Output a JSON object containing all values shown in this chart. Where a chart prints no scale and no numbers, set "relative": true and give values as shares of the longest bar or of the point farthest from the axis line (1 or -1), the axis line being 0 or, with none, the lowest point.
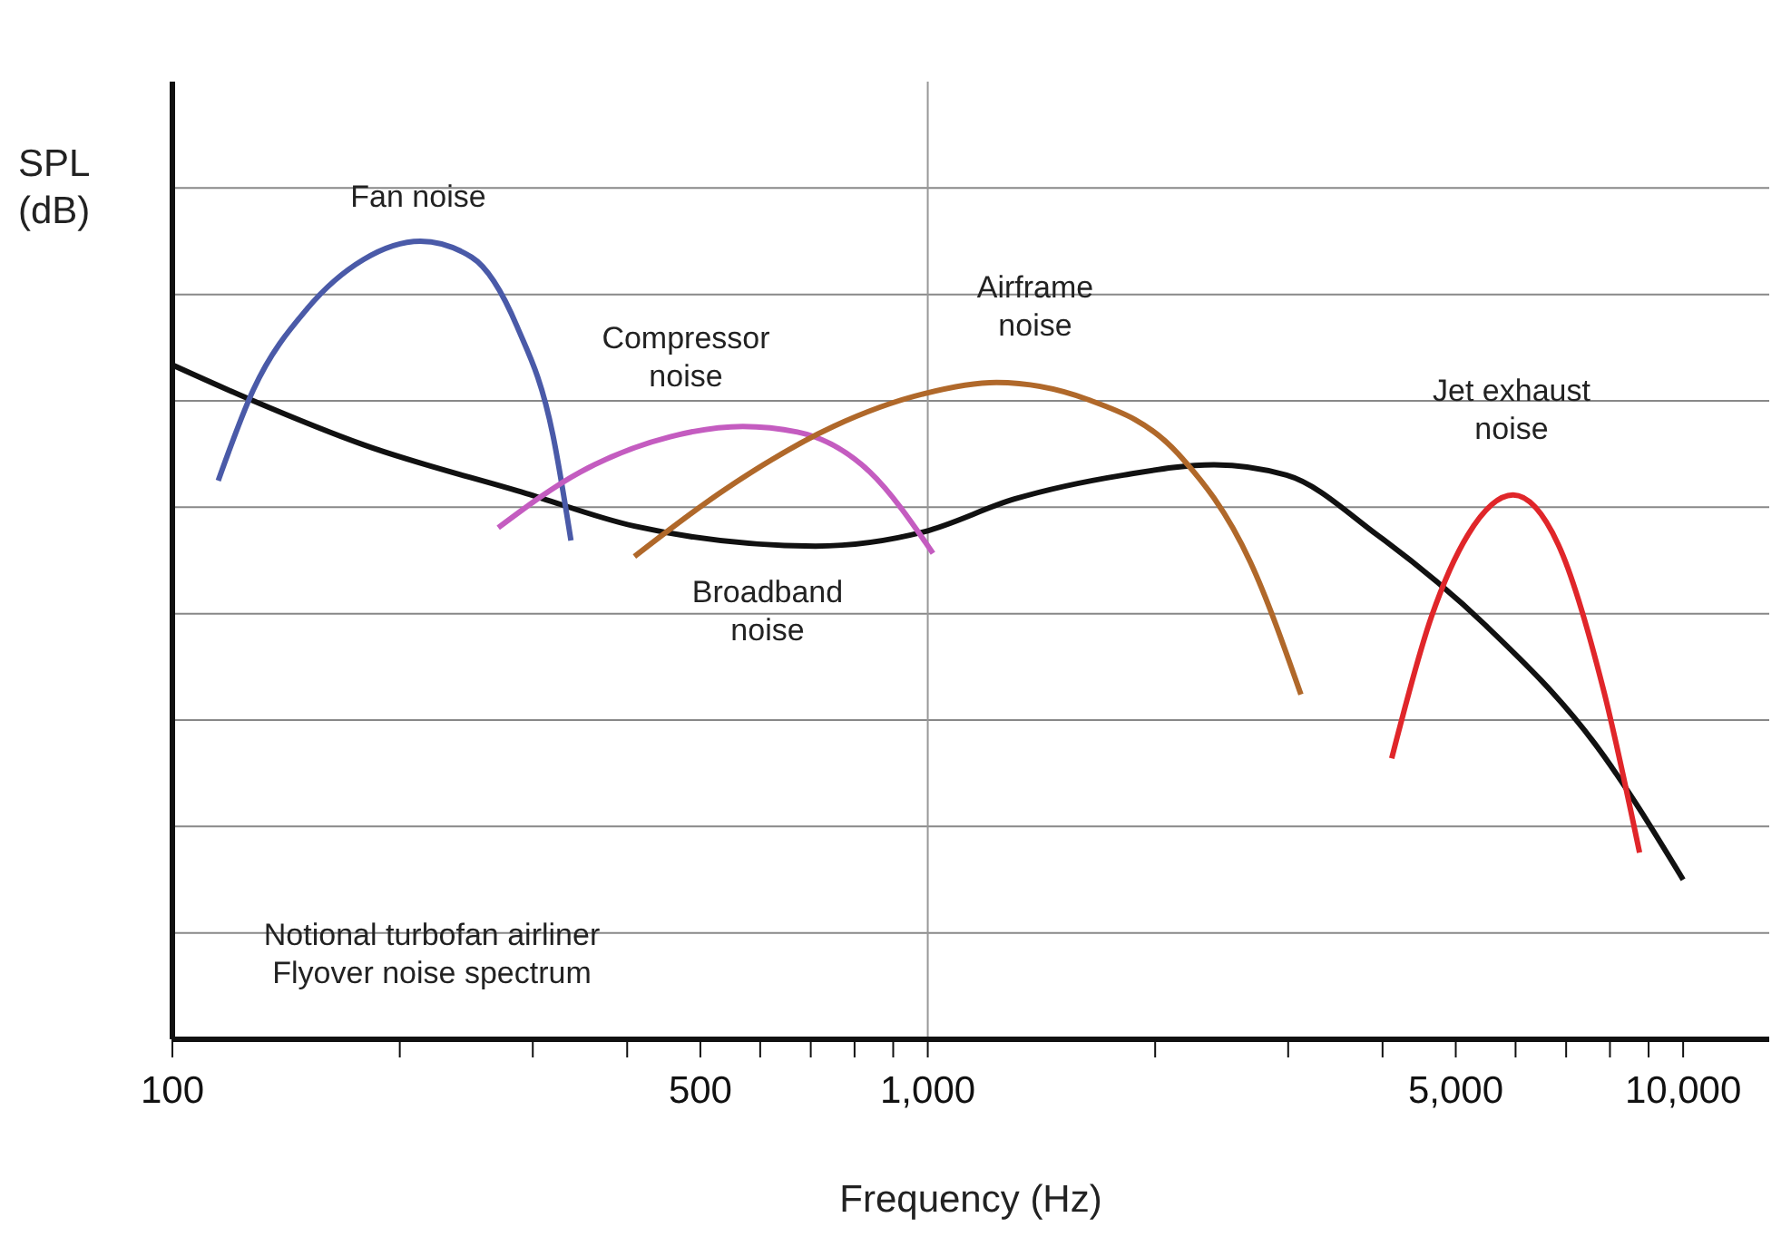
{
  "chart_data": {
    "type": "line",
    "relative": true,
    "log": "x",
    "grid": "y",
    "xlabel": "Frequency (Hz)",
    "ylabel": "SPL (dB)",
    "xlim": [
      100,
      13000
    ],
    "xticks": [
      100,
      {
        "value": 200,
        "label": null
      },
      {
        "value": 300,
        "label": null
      },
      {
        "value": 400,
        "label": null
      },
      500,
      {
        "value": 600,
        "label": null
      },
      {
        "value": 700,
        "label": null
      },
      {
        "value": 800,
        "label": null
      },
      {
        "value": 900,
        "label": null
      },
      {
        "value": 1000,
        "label": "1,000"
      },
      {
        "value": 2000,
        "label": null
      },
      {
        "value": 3000,
        "label": null
      },
      {
        "value": 4000,
        "label": null
      },
      {
        "value": 5000,
        "label": "5,000"
      },
      {
        "value": 6000,
        "label": null
      },
      {
        "value": 7000,
        "label": null
      },
      {
        "value": 8000,
        "label": null
      },
      {
        "value": 9000,
        "label": null
      },
      {
        "value": 10000,
        "label": "10,000"
      }
    ],
    "ref_lines": [
      {
        "axis": "x",
        "value": 1000,
        "color": "#999999"
      }
    ],
    "annotations": [
      "Notional turbofan airliner",
      "Flyover noise spectrum"
    ],
    "series": [
      {
        "name": "Broadband noise",
        "color": "#111111",
        "x": [
          100,
          128,
          179,
          294,
          409,
          710,
          989,
          1303,
          1816,
          2393,
          2985,
          3936,
          5486,
          7646,
          10000
        ],
        "values": [
          0.845,
          0.8,
          0.745,
          0.684,
          0.643,
          0.618,
          0.636,
          0.677,
          0.707,
          0.72,
          0.707,
          0.632,
          0.518,
          0.37,
          0.2
        ]
      },
      {
        "name": "Fan noise",
        "color": "#4a5aa8",
        "x": [
          115,
          128,
          151,
          179,
          213,
          249,
          286,
          319,
          337
        ],
        "values": [
          0.7,
          0.814,
          0.916,
          0.977,
          1.0,
          0.98,
          0.893,
          0.757,
          0.625
        ]
      },
      {
        "name": "Compressor noise",
        "color": "#c45cc0",
        "x": [
          270,
          347,
          456,
          569,
          672,
          838,
          1016
        ],
        "values": [
          0.641,
          0.711,
          0.755,
          0.768,
          0.761,
          0.711,
          0.609
        ]
      },
      {
        "name": "Airframe noise",
        "color": "#b0682a",
        "x": [
          409,
          539,
          750,
          989,
          1233,
          1625,
          2143,
          2673,
          3119
        ],
        "values": [
          0.605,
          0.689,
          0.768,
          0.809,
          0.823,
          0.802,
          0.734,
          0.598,
          0.432
        ]
      },
      {
        "name": "Jet exhaust noise",
        "color": "#e0262a",
        "x": [
          4113,
          4645,
          5188,
          5954,
          6834,
          7839,
          8756
        ],
        "values": [
          0.352,
          0.53,
          0.632,
          0.682,
          0.62,
          0.439,
          0.234
        ]
      }
    ]
  }
}
